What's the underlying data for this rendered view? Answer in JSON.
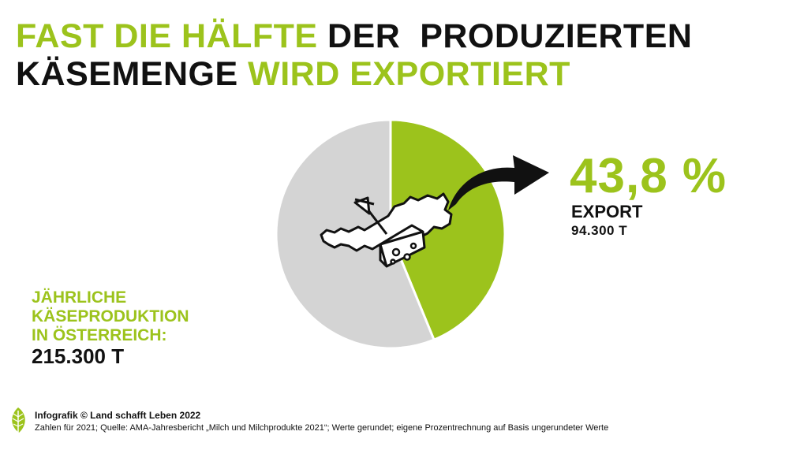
{
  "headline": {
    "part1": "FAST DIE HÄLFTE",
    "part2": " DER  PRODUZIERTEN",
    "part3": "KÄSEMENGE",
    "part4": " WIRD EXPORTIERT"
  },
  "colors": {
    "accent": "#9cc31c",
    "remainder": "#d4d4d4",
    "text": "#111111"
  },
  "chart_data": {
    "type": "pie",
    "total_label": "215.300 T",
    "slices": [
      {
        "label": "Export",
        "value": 43.8,
        "absolute": "94.300 T",
        "color": "#9cc31c"
      },
      {
        "label": "",
        "value": 56.2,
        "color": "#d4d4d4"
      }
    ],
    "start": "12 o'clock",
    "direction": "clockwise",
    "icons": [
      "austria-map-icon",
      "cheese-icon",
      "export-arrow-icon"
    ]
  },
  "callout": {
    "percent": "43,8 %",
    "label": "EXPORT",
    "value": "94.300 T"
  },
  "production": {
    "label_lines": [
      "JÄHRLICHE",
      "KÄSEPRODUKTION",
      "IN ÖSTERREICH:"
    ],
    "value": "215.300 T"
  },
  "footer": {
    "credit": "Infografik © Land schafft Leben 2022",
    "source": "Zahlen für 2021; Quelle: AMA-Jahresbericht „Milch und Milchprodukte 2021“; Werte gerundet; eigene Prozentrechnung auf Basis ungerundeter Werte",
    "logo_icon": "leaf-logo-icon"
  }
}
